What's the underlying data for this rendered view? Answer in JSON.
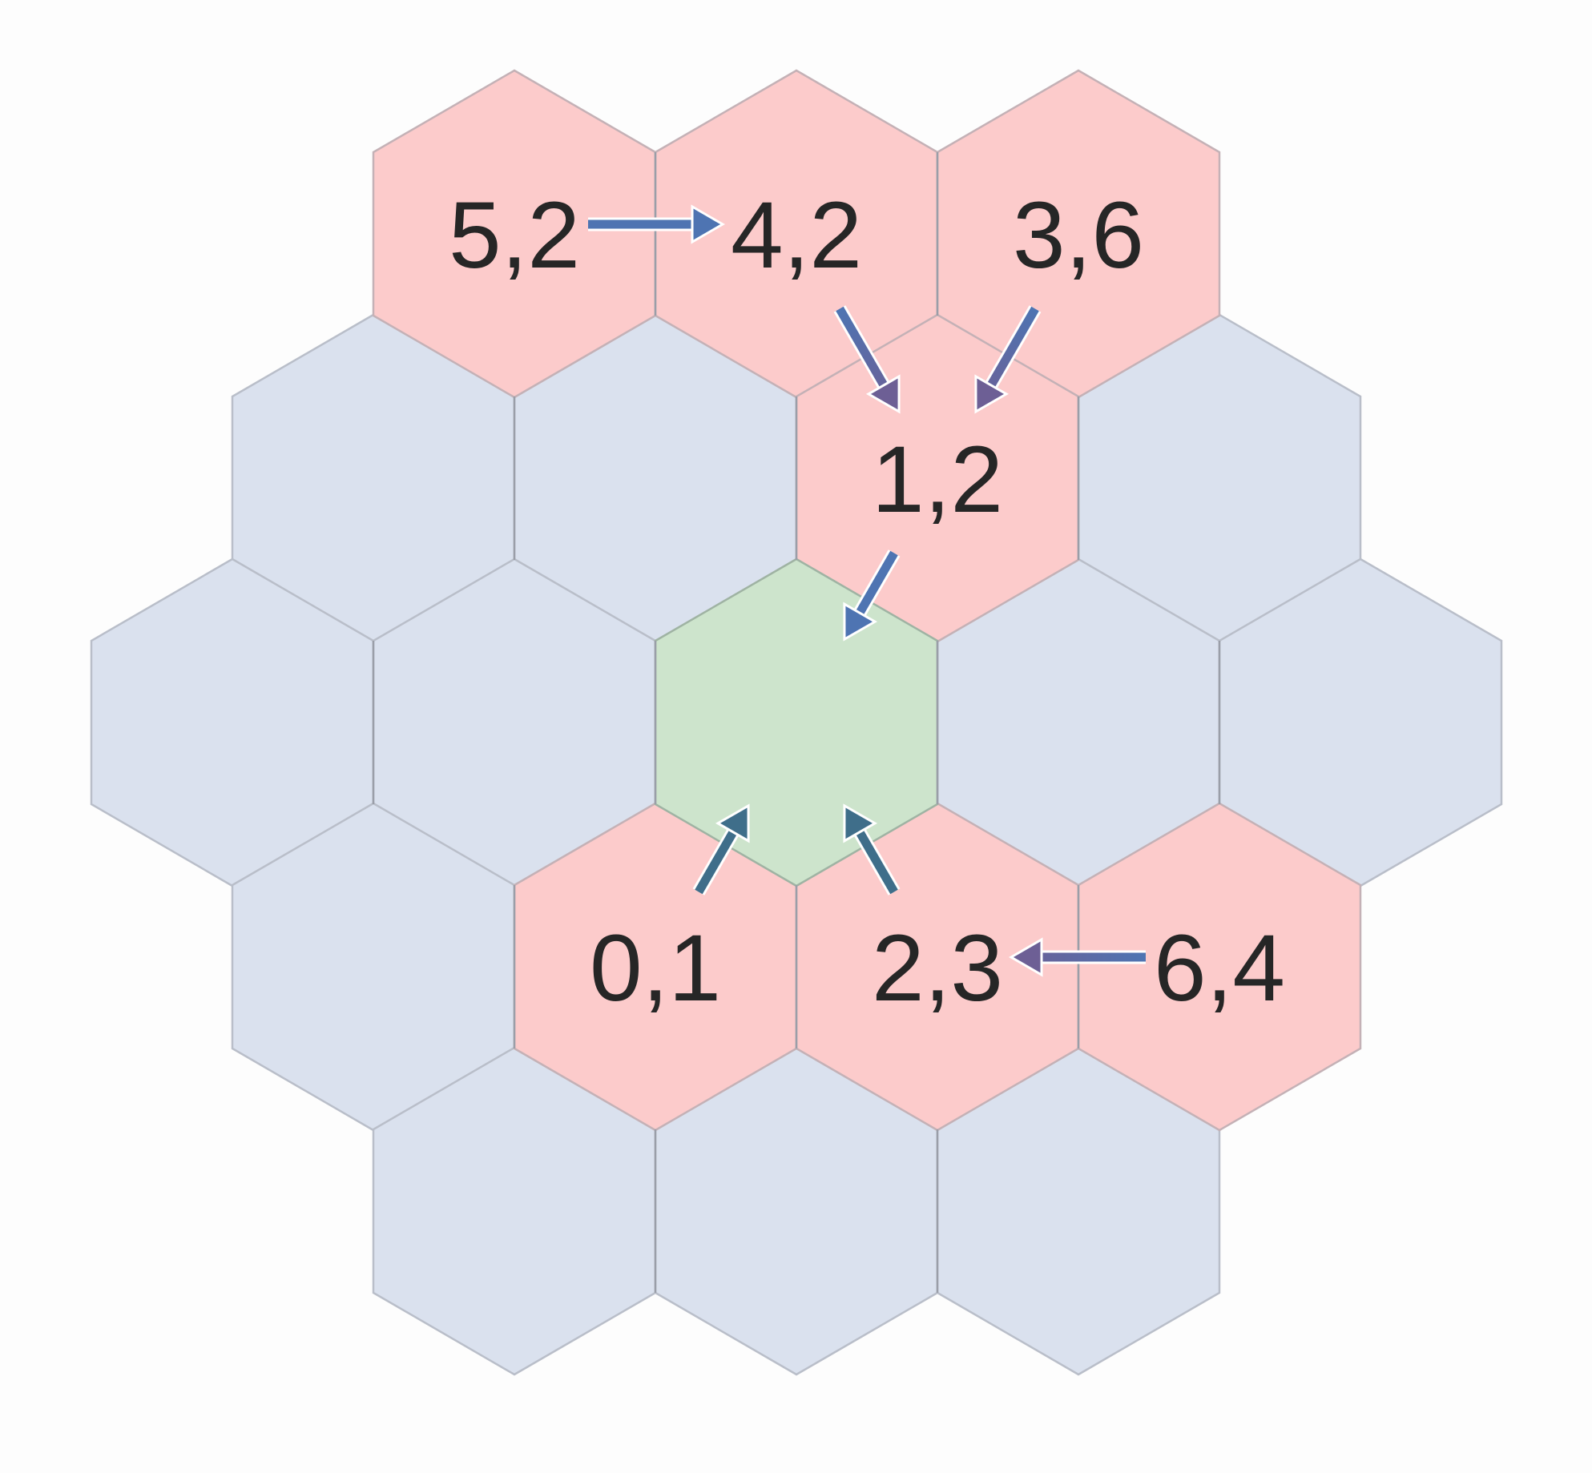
{
  "colors": {
    "background": "#fdfdfd",
    "neutral_fill": "#dae1ee",
    "neutral_stroke": "#b9bec9",
    "highlight_fill": "#fccbcb",
    "highlight_stroke": "#c4b1b6",
    "center_fill": "#cde4cc",
    "center_stroke": "#9fb3a3",
    "inner_stroke": "#9a9ea8",
    "label_color": "#262626"
  },
  "cells": [
    {
      "id": "top-left",
      "state": "highlight",
      "label": "5,2"
    },
    {
      "id": "top-middle",
      "state": "highlight",
      "label": "4,2"
    },
    {
      "id": "top-right",
      "state": "highlight",
      "label": "3,6"
    },
    {
      "id": "upper-far-left",
      "state": "neutral",
      "label": ""
    },
    {
      "id": "upper-left",
      "state": "neutral",
      "label": ""
    },
    {
      "id": "upper-right",
      "state": "highlight",
      "label": "1,2"
    },
    {
      "id": "upper-far-right",
      "state": "neutral",
      "label": ""
    },
    {
      "id": "middle-far-left",
      "state": "neutral",
      "label": ""
    },
    {
      "id": "middle-left",
      "state": "neutral",
      "label": ""
    },
    {
      "id": "center",
      "state": "center",
      "label": ""
    },
    {
      "id": "middle-right",
      "state": "neutral",
      "label": ""
    },
    {
      "id": "middle-far-right",
      "state": "neutral",
      "label": ""
    },
    {
      "id": "lower-far-left",
      "state": "neutral",
      "label": ""
    },
    {
      "id": "lower-left",
      "state": "highlight",
      "label": "0,1"
    },
    {
      "id": "lower-right",
      "state": "highlight",
      "label": "2,3"
    },
    {
      "id": "lower-far-right",
      "state": "highlight",
      "label": "6,4"
    },
    {
      "id": "bottom-left",
      "state": "neutral",
      "label": ""
    },
    {
      "id": "bottom-middle",
      "state": "neutral",
      "label": ""
    },
    {
      "id": "bottom-right",
      "state": "neutral",
      "label": ""
    }
  ],
  "arrows": [
    {
      "from": "top-left",
      "to": "top-middle",
      "tail_color": "#4e74b2",
      "head_color": "#4e74b2"
    },
    {
      "from": "top-middle",
      "to": "upper-right",
      "tail_color": "#4e74b2",
      "head_color": "#6d5f95"
    },
    {
      "from": "top-right",
      "to": "upper-right",
      "tail_color": "#4e74b2",
      "head_color": "#6d5f95"
    },
    {
      "from": "upper-right",
      "to": "center",
      "tail_color": "#4e74b2",
      "head_color": "#4e74b2"
    },
    {
      "from": "lower-left",
      "to": "center",
      "tail_color": "#3f6e8a",
      "head_color": "#3f6e8a"
    },
    {
      "from": "lower-right",
      "to": "center",
      "tail_color": "#3f6e8a",
      "head_color": "#3f6e8a"
    },
    {
      "from": "lower-far-right",
      "to": "lower-right",
      "tail_color": "#4e74b2",
      "head_color": "#6d5f95"
    }
  ]
}
